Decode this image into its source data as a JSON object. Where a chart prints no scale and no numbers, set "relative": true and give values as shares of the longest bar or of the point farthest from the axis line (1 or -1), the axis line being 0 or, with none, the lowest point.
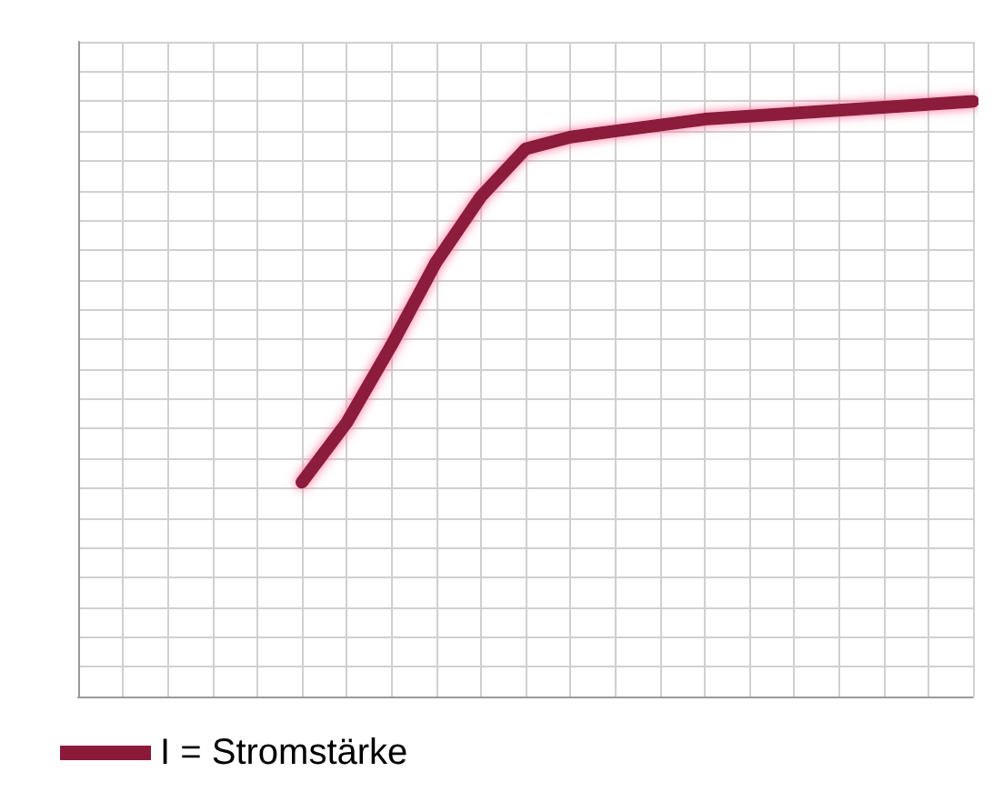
{
  "chart_data": {
    "type": "line",
    "relative": true,
    "categories": [
      null,
      null,
      null,
      null,
      null,
      null,
      null,
      null,
      null,
      null,
      null,
      null,
      null,
      null,
      null,
      null,
      null,
      null,
      null,
      null,
      null
    ],
    "series": [
      {
        "name": "I = Stromstärke",
        "color": "#8b1a3a",
        "values": [
          null,
          null,
          null,
          null,
          null,
          0.36,
          0.46,
          0.59,
          0.73,
          0.84,
          0.92,
          0.94,
          0.95,
          0.96,
          0.97,
          0.975,
          0.98,
          0.985,
          0.99,
          0.995,
          1
        ]
      }
    ],
    "legend": "bottom left",
    "grid": true,
    "line_style": "solid"
  }
}
